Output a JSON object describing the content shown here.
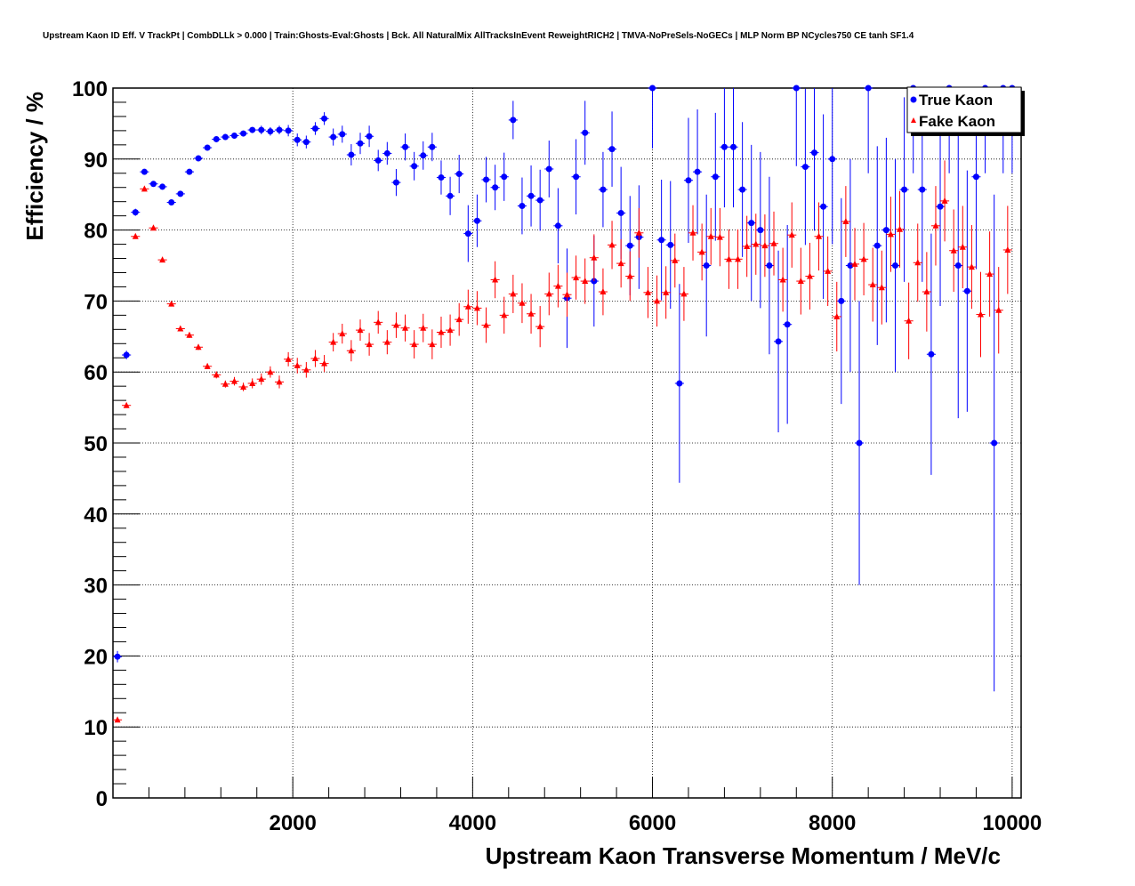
{
  "chart_data": {
    "type": "scatter",
    "title": "Upstream Kaon ID Eff. V TrackPt | CombDLLk > 0.000 | Train:Ghosts-Eval:Ghosts | Bck. All NaturalMix AllTracksInEvent ReweightRICH2 | TMVA-NoPreSels-NoGECs | MLP Norm BP NCycles750 CE tanh SF1.4",
    "xlabel": "Upstream Kaon Transverse Momentum / MeV/c",
    "ylabel": "Efficiency / %",
    "xlim": [
      0,
      10100
    ],
    "ylim": [
      0,
      100
    ],
    "x_ticks": [
      "2000",
      "4000",
      "6000",
      "8000",
      "10000"
    ],
    "y_ticks": [
      "0",
      "10",
      "20",
      "30",
      "40",
      "50",
      "60",
      "70",
      "80",
      "90",
      "100"
    ],
    "grid": true,
    "legend_position": "top-right",
    "series": [
      {
        "name": "True Kaon",
        "color": "#0000ff",
        "marker": "circle",
        "points": [
          [
            50,
            19.9,
            0.8
          ],
          [
            150,
            62.4,
            0.6
          ],
          [
            250,
            82.5,
            0.5
          ],
          [
            350,
            88.2,
            0.4
          ],
          [
            450,
            86.5,
            0.4
          ],
          [
            550,
            86.1,
            0.4
          ],
          [
            650,
            83.9,
            0.4
          ],
          [
            750,
            85.1,
            0.4
          ],
          [
            850,
            88.2,
            0.4
          ],
          [
            950,
            90.1,
            0.4
          ],
          [
            1050,
            91.6,
            0.4
          ],
          [
            1150,
            92.8,
            0.4
          ],
          [
            1250,
            93.1,
            0.4
          ],
          [
            1350,
            93.3,
            0.4
          ],
          [
            1450,
            93.6,
            0.4
          ],
          [
            1550,
            94.1,
            0.4
          ],
          [
            1650,
            94.1,
            0.6
          ],
          [
            1750,
            93.9,
            0.6
          ],
          [
            1850,
            94.1,
            0.6
          ],
          [
            1950,
            94.0,
            0.8
          ],
          [
            2050,
            92.7,
            0.9
          ],
          [
            2150,
            92.4,
            0.9
          ],
          [
            2250,
            94.3,
            0.9
          ],
          [
            2350,
            95.7,
            0.9
          ],
          [
            2450,
            93.1,
            1.2
          ],
          [
            2550,
            93.5,
            1.2
          ],
          [
            2650,
            90.6,
            1.5
          ],
          [
            2750,
            92.2,
            1.5
          ],
          [
            2850,
            93.2,
            1.5
          ],
          [
            2950,
            89.8,
            1.5
          ],
          [
            3050,
            90.8,
            1.6
          ],
          [
            3150,
            86.7,
            1.9
          ],
          [
            3250,
            91.7,
            1.9
          ],
          [
            3350,
            89.0,
            2.0
          ],
          [
            3450,
            90.5,
            2.0
          ],
          [
            3550,
            91.7,
            2.0
          ],
          [
            3650,
            87.4,
            2.4
          ],
          [
            3750,
            84.8,
            2.7
          ],
          [
            3850,
            87.9,
            2.7
          ],
          [
            3950,
            79.5,
            4.0
          ],
          [
            4050,
            81.3,
            3.7
          ],
          [
            4150,
            87.1,
            3.2
          ],
          [
            4250,
            86.0,
            3.2
          ],
          [
            4350,
            87.5,
            3.4
          ],
          [
            4450,
            95.5,
            2.7
          ],
          [
            4550,
            83.4,
            4.0
          ],
          [
            4650,
            84.8,
            4.3
          ],
          [
            4750,
            84.2,
            4.3
          ],
          [
            4850,
            88.6,
            4.0
          ],
          [
            4950,
            80.6,
            5.3
          ],
          [
            5050,
            70.4,
            7.0
          ],
          [
            5150,
            87.5,
            5.3
          ],
          [
            5250,
            93.7,
            4.5
          ],
          [
            5350,
            72.8,
            6.4
          ],
          [
            5450,
            85.7,
            5.3
          ],
          [
            5550,
            91.4,
            5.3
          ],
          [
            5650,
            82.4,
            6.5
          ],
          [
            5750,
            77.8,
            7.0
          ],
          [
            5850,
            79.0,
            7.3
          ],
          [
            6000,
            100.0,
            8.5
          ],
          [
            6100,
            78.6,
            8.5
          ],
          [
            6200,
            77.9,
            9.0
          ],
          [
            6300,
            58.4,
            14.0
          ],
          [
            6400,
            87.0,
            8.8
          ],
          [
            6500,
            88.2,
            8.8
          ],
          [
            6600,
            75.0,
            10.0
          ],
          [
            6700,
            87.5,
            9.0
          ],
          [
            6800,
            91.7,
            8.5
          ],
          [
            6900,
            91.7,
            8.5
          ],
          [
            7000,
            85.7,
            9.5
          ],
          [
            7100,
            81.0,
            11.0
          ],
          [
            7200,
            80.0,
            11.0
          ],
          [
            7300,
            75.0,
            12.5
          ],
          [
            7400,
            64.3,
            12.8
          ],
          [
            7500,
            66.7,
            14.0
          ],
          [
            7600,
            100.0,
            11.0
          ],
          [
            7700,
            88.9,
            11.0
          ],
          [
            7800,
            90.9,
            11.0
          ],
          [
            7900,
            83.3,
            13.0
          ],
          [
            8000,
            90.0,
            12.0
          ],
          [
            8100,
            70.0,
            14.5
          ],
          [
            8200,
            75.0,
            15.0
          ],
          [
            8300,
            50.0,
            20.0
          ],
          [
            8400,
            100.0,
            12.0
          ],
          [
            8500,
            77.8,
            14.0
          ],
          [
            8600,
            80.0,
            13.0
          ],
          [
            8700,
            75.0,
            15.0
          ],
          [
            8800,
            85.7,
            13.0
          ],
          [
            8900,
            100.0,
            12.0
          ],
          [
            9000,
            85.7,
            13.0
          ],
          [
            9100,
            62.5,
            17.0
          ],
          [
            9200,
            83.3,
            14.0
          ],
          [
            9300,
            100.0,
            12.0
          ],
          [
            9400,
            75.0,
            21.5
          ],
          [
            9500,
            71.4,
            17.0
          ],
          [
            9600,
            87.5,
            13.0
          ],
          [
            9700,
            100.0,
            12.0
          ],
          [
            9800,
            50.0,
            35.0
          ],
          [
            9900,
            100.0,
            12.0
          ],
          [
            10000,
            100.0,
            12.0
          ]
        ]
      },
      {
        "name": "Fake Kaon",
        "color": "#ff0000",
        "marker": "triangle",
        "points": [
          [
            50,
            11.0,
            0.3
          ],
          [
            150,
            55.3,
            0.3
          ],
          [
            250,
            79.1,
            0.3
          ],
          [
            350,
            85.8,
            0.3
          ],
          [
            450,
            80.3,
            0.3
          ],
          [
            550,
            75.8,
            0.3
          ],
          [
            650,
            69.6,
            0.3
          ],
          [
            750,
            66.1,
            0.3
          ],
          [
            850,
            65.2,
            0.4
          ],
          [
            950,
            63.5,
            0.4
          ],
          [
            1050,
            60.8,
            0.4
          ],
          [
            1150,
            59.6,
            0.5
          ],
          [
            1250,
            58.3,
            0.5
          ],
          [
            1350,
            58.7,
            0.6
          ],
          [
            1450,
            57.9,
            0.6
          ],
          [
            1550,
            58.4,
            0.7
          ],
          [
            1650,
            59.0,
            0.8
          ],
          [
            1750,
            60.0,
            0.8
          ],
          [
            1850,
            58.6,
            0.9
          ],
          [
            1950,
            61.8,
            1.0
          ],
          [
            2050,
            60.9,
            1.1
          ],
          [
            2150,
            60.3,
            1.1
          ],
          [
            2250,
            61.9,
            1.2
          ],
          [
            2350,
            61.2,
            1.2
          ],
          [
            2450,
            64.2,
            1.3
          ],
          [
            2550,
            65.4,
            1.4
          ],
          [
            2650,
            63.0,
            1.5
          ],
          [
            2750,
            65.9,
            1.5
          ],
          [
            2850,
            63.9,
            1.6
          ],
          [
            2950,
            67.0,
            1.6
          ],
          [
            3050,
            64.2,
            1.7
          ],
          [
            3150,
            66.6,
            1.8
          ],
          [
            3250,
            66.2,
            1.9
          ],
          [
            3350,
            63.9,
            2.0
          ],
          [
            3450,
            66.2,
            2.0
          ],
          [
            3550,
            63.9,
            2.1
          ],
          [
            3650,
            65.6,
            2.2
          ],
          [
            3750,
            65.9,
            2.2
          ],
          [
            3850,
            67.4,
            2.3
          ],
          [
            3950,
            69.2,
            2.4
          ],
          [
            4050,
            69.0,
            2.4
          ],
          [
            4150,
            66.6,
            2.5
          ],
          [
            4250,
            73.0,
            2.6
          ],
          [
            4350,
            68.0,
            2.6
          ],
          [
            4450,
            71.0,
            2.7
          ],
          [
            4550,
            69.7,
            2.8
          ],
          [
            4650,
            68.2,
            2.8
          ],
          [
            4750,
            66.4,
            2.9
          ],
          [
            4850,
            71.0,
            3.0
          ],
          [
            4950,
            72.1,
            3.0
          ],
          [
            5050,
            70.9,
            3.1
          ],
          [
            5150,
            73.3,
            3.1
          ],
          [
            5250,
            72.8,
            3.2
          ],
          [
            5350,
            76.1,
            3.3
          ],
          [
            5450,
            71.3,
            3.3
          ],
          [
            5550,
            77.9,
            3.4
          ],
          [
            5650,
            75.3,
            3.4
          ],
          [
            5750,
            73.5,
            3.5
          ],
          [
            5850,
            79.6,
            3.5
          ],
          [
            5950,
            71.2,
            3.6
          ],
          [
            6050,
            70.0,
            3.6
          ],
          [
            6150,
            71.2,
            3.7
          ],
          [
            6250,
            75.7,
            3.8
          ],
          [
            6350,
            71.0,
            3.8
          ],
          [
            6450,
            79.6,
            3.9
          ],
          [
            6550,
            76.9,
            4.0
          ],
          [
            6650,
            79.1,
            4.0
          ],
          [
            6750,
            79.0,
            4.1
          ],
          [
            6850,
            75.9,
            4.2
          ],
          [
            6950,
            75.9,
            4.2
          ],
          [
            7050,
            77.7,
            4.3
          ],
          [
            7150,
            78.0,
            4.3
          ],
          [
            7250,
            77.8,
            4.4
          ],
          [
            7350,
            78.1,
            4.5
          ],
          [
            7450,
            73.0,
            4.5
          ],
          [
            7550,
            79.3,
            4.6
          ],
          [
            7650,
            72.8,
            4.7
          ],
          [
            7750,
            73.5,
            4.7
          ],
          [
            7850,
            79.1,
            4.8
          ],
          [
            7950,
            74.2,
            4.9
          ],
          [
            8050,
            67.8,
            4.9
          ],
          [
            8150,
            81.2,
            5.0
          ],
          [
            8250,
            75.2,
            5.1
          ],
          [
            8350,
            75.9,
            5.1
          ],
          [
            8450,
            72.3,
            5.2
          ],
          [
            8550,
            71.9,
            5.2
          ],
          [
            8650,
            79.4,
            5.3
          ],
          [
            8750,
            80.1,
            5.4
          ],
          [
            8850,
            67.2,
            5.4
          ],
          [
            8950,
            75.4,
            5.5
          ],
          [
            9050,
            71.3,
            5.6
          ],
          [
            9150,
            80.6,
            5.6
          ],
          [
            9250,
            84.1,
            5.7
          ],
          [
            9350,
            77.1,
            5.8
          ],
          [
            9450,
            77.6,
            5.8
          ],
          [
            9550,
            74.8,
            5.9
          ],
          [
            9650,
            68.1,
            6.0
          ],
          [
            9750,
            73.8,
            6.0
          ],
          [
            9850,
            68.7,
            6.1
          ],
          [
            9950,
            77.2,
            6.2
          ]
        ]
      }
    ]
  }
}
